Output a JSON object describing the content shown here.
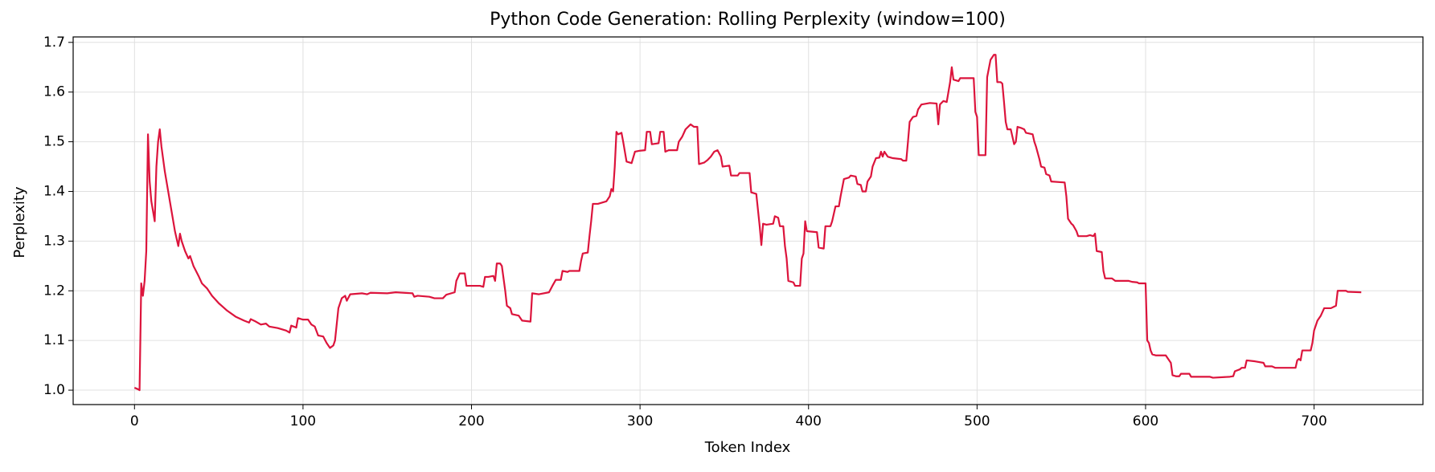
{
  "chart_data": {
    "type": "line",
    "title": "Python Code Generation: Rolling Perplexity (window=100)",
    "xlabel": "Token Index",
    "ylabel": "Perplexity",
    "color": "#dc143c",
    "grid": true,
    "xlim": [
      -36.4,
      764.6
    ],
    "ylim": [
      0.971,
      1.711
    ],
    "xticks": [
      0,
      100,
      200,
      300,
      400,
      500,
      600,
      700
    ],
    "yticks": [
      {
        "value": 1,
        "label": "1.0"
      },
      1.1,
      1.2,
      1.3,
      1.4,
      1.5,
      1.6,
      1.7
    ],
    "x": [
      0,
      2,
      3,
      4,
      5,
      6,
      7,
      8,
      9,
      10,
      11,
      12,
      13,
      14,
      15,
      16,
      18,
      20,
      22,
      24,
      26,
      27,
      28,
      30,
      32,
      33,
      35,
      38,
      40,
      43,
      46,
      50,
      55,
      60,
      65,
      68,
      69,
      72,
      75,
      78,
      80,
      85,
      90,
      92,
      93,
      96,
      97,
      100,
      103,
      105,
      107,
      109,
      112,
      114,
      116,
      118,
      119,
      121,
      123,
      125,
      126,
      128,
      135,
      138,
      140,
      150,
      155,
      165,
      166,
      168,
      175,
      178,
      183,
      185,
      190,
      191,
      193,
      196,
      197,
      200,
      205,
      207,
      208,
      210,
      213,
      214,
      215,
      217,
      218,
      220,
      221,
      223,
      224,
      228,
      230,
      235,
      236,
      240,
      246,
      248,
      250,
      253,
      254,
      257,
      258,
      264,
      265,
      266,
      269,
      270,
      271,
      272,
      275,
      280,
      281,
      282,
      283,
      284,
      285,
      286,
      287,
      289,
      290,
      292,
      295,
      297,
      300,
      303,
      304,
      306,
      307,
      311,
      312,
      314,
      315,
      317,
      322,
      323,
      325,
      327,
      330,
      332,
      334,
      335,
      338,
      340,
      342,
      344,
      346,
      348,
      349,
      353,
      354,
      358,
      359,
      365,
      366,
      369,
      371,
      372,
      373,
      375,
      379,
      380,
      382,
      383,
      385,
      386,
      387,
      388,
      391,
      392,
      395,
      396,
      397,
      398,
      399,
      405,
      406,
      409,
      410,
      413,
      414,
      416,
      418,
      419,
      421,
      424,
      425,
      428,
      429,
      431,
      432,
      434,
      435,
      437,
      438,
      440,
      442,
      443,
      444,
      445,
      447,
      450,
      455,
      456,
      458,
      459,
      460,
      462,
      464,
      465,
      467,
      472,
      476,
      477,
      478,
      480,
      482,
      484,
      485,
      486,
      489,
      490,
      498,
      499,
      500,
      501,
      505,
      506,
      508,
      510,
      511,
      512,
      514,
      515,
      516,
      517,
      518,
      520,
      521,
      522,
      523,
      524,
      526,
      528,
      529,
      533,
      534,
      535,
      537,
      538,
      540,
      541,
      543,
      544,
      552,
      553,
      554,
      556,
      557,
      559,
      560,
      565,
      567,
      569,
      570,
      571,
      574,
      575,
      576,
      580,
      582,
      590,
      592,
      595,
      596,
      600,
      601,
      602,
      603,
      604,
      606,
      612,
      613,
      615,
      616,
      618,
      620,
      621,
      626,
      627,
      638,
      640,
      650,
      652,
      653,
      656,
      657,
      659,
      660,
      665,
      670,
      671,
      675,
      677,
      689,
      690,
      691,
      692,
      693,
      698,
      699,
      700,
      702,
      704,
      706,
      710,
      713,
      714,
      719,
      720,
      728
    ],
    "values": [
      1.005,
      1.002,
      1.0,
      1.215,
      1.19,
      1.22,
      1.28,
      1.515,
      1.42,
      1.38,
      1.36,
      1.34,
      1.45,
      1.5,
      1.525,
      1.49,
      1.44,
      1.4,
      1.36,
      1.32,
      1.29,
      1.315,
      1.3,
      1.28,
      1.265,
      1.27,
      1.25,
      1.23,
      1.215,
      1.205,
      1.19,
      1.175,
      1.16,
      1.148,
      1.14,
      1.136,
      1.143,
      1.138,
      1.132,
      1.134,
      1.128,
      1.125,
      1.12,
      1.116,
      1.13,
      1.126,
      1.145,
      1.142,
      1.142,
      1.132,
      1.128,
      1.11,
      1.108,
      1.095,
      1.085,
      1.09,
      1.1,
      1.165,
      1.185,
      1.19,
      1.18,
      1.193,
      1.195,
      1.193,
      1.196,
      1.195,
      1.197,
      1.195,
      1.188,
      1.19,
      1.188,
      1.185,
      1.185,
      1.192,
      1.197,
      1.22,
      1.235,
      1.235,
      1.21,
      1.21,
      1.21,
      1.208,
      1.228,
      1.228,
      1.23,
      1.22,
      1.255,
      1.255,
      1.25,
      1.2,
      1.17,
      1.165,
      1.153,
      1.15,
      1.14,
      1.138,
      1.195,
      1.193,
      1.197,
      1.21,
      1.222,
      1.222,
      1.24,
      1.238,
      1.24,
      1.24,
      1.26,
      1.275,
      1.277,
      1.31,
      1.34,
      1.375,
      1.375,
      1.38,
      1.385,
      1.39,
      1.405,
      1.4,
      1.45,
      1.52,
      1.515,
      1.518,
      1.5,
      1.46,
      1.457,
      1.48,
      1.482,
      1.483,
      1.52,
      1.52,
      1.495,
      1.497,
      1.52,
      1.52,
      1.48,
      1.483,
      1.483,
      1.5,
      1.51,
      1.525,
      1.535,
      1.53,
      1.53,
      1.455,
      1.458,
      1.463,
      1.47,
      1.48,
      1.483,
      1.47,
      1.45,
      1.452,
      1.432,
      1.432,
      1.437,
      1.437,
      1.398,
      1.395,
      1.33,
      1.292,
      1.335,
      1.333,
      1.335,
      1.35,
      1.347,
      1.33,
      1.33,
      1.29,
      1.265,
      1.22,
      1.217,
      1.21,
      1.21,
      1.265,
      1.275,
      1.34,
      1.32,
      1.318,
      1.287,
      1.285,
      1.33,
      1.33,
      1.34,
      1.37,
      1.37,
      1.39,
      1.425,
      1.428,
      1.432,
      1.43,
      1.415,
      1.413,
      1.4,
      1.4,
      1.42,
      1.43,
      1.45,
      1.467,
      1.468,
      1.48,
      1.47,
      1.48,
      1.47,
      1.467,
      1.465,
      1.462,
      1.462,
      1.5,
      1.54,
      1.55,
      1.552,
      1.565,
      1.575,
      1.578,
      1.577,
      1.535,
      1.575,
      1.582,
      1.58,
      1.62,
      1.65,
      1.625,
      1.622,
      1.628,
      1.628,
      1.56,
      1.55,
      1.473,
      1.473,
      1.63,
      1.665,
      1.675,
      1.675,
      1.62,
      1.62,
      1.617,
      1.58,
      1.54,
      1.525,
      1.525,
      1.51,
      1.495,
      1.5,
      1.53,
      1.528,
      1.525,
      1.518,
      1.515,
      1.5,
      1.49,
      1.465,
      1.45,
      1.448,
      1.435,
      1.432,
      1.42,
      1.418,
      1.39,
      1.345,
      1.335,
      1.332,
      1.32,
      1.31,
      1.31,
      1.312,
      1.31,
      1.315,
      1.28,
      1.278,
      1.24,
      1.225,
      1.225,
      1.22,
      1.22,
      1.218,
      1.217,
      1.215,
      1.215,
      1.1,
      1.095,
      1.08,
      1.072,
      1.07,
      1.07,
      1.065,
      1.055,
      1.03,
      1.028,
      1.028,
      1.033,
      1.033,
      1.027,
      1.027,
      1.025,
      1.027,
      1.028,
      1.038,
      1.042,
      1.045,
      1.045,
      1.06,
      1.058,
      1.055,
      1.048,
      1.048,
      1.045,
      1.045,
      1.06,
      1.063,
      1.06,
      1.08,
      1.08,
      1.095,
      1.12,
      1.14,
      1.15,
      1.165,
      1.165,
      1.17,
      1.2,
      1.2,
      1.198,
      1.197
    ]
  }
}
